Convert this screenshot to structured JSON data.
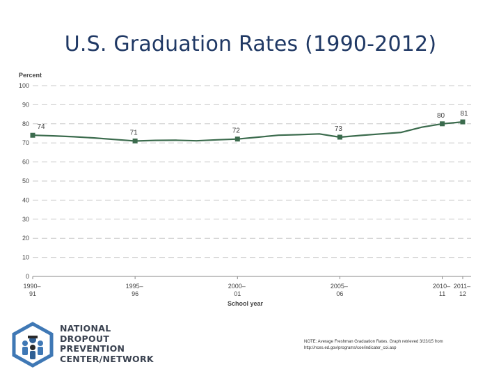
{
  "slide": {
    "title": "U.S. Graduation  Rates (1990-2012)"
  },
  "chart_data": {
    "type": "line",
    "title": "",
    "ylabel": "Percent",
    "xlabel": "School year",
    "ylim": [
      0,
      100
    ],
    "yticks": [
      0,
      10,
      20,
      30,
      40,
      50,
      60,
      70,
      80,
      90,
      100
    ],
    "xticks": [
      {
        "line1": "1990–",
        "line2": "91"
      },
      {
        "line1": "1995–",
        "line2": "96"
      },
      {
        "line1": "2000–",
        "line2": "01"
      },
      {
        "line1": "2005–",
        "line2": "06"
      },
      {
        "line1": "2010–",
        "line2": "11"
      },
      {
        "line1": "2011–",
        "line2": "12"
      }
    ],
    "x": [
      "1990–91",
      "1991–92",
      "1992–93",
      "1993–94",
      "1994–95",
      "1995–96",
      "1996–97",
      "1997–98",
      "1998–99",
      "1999–2000",
      "2000–01",
      "2001–02",
      "2002–03",
      "2003–04",
      "2004–05",
      "2005–06",
      "2006–07",
      "2007–08",
      "2008–09",
      "2009–10",
      "2010–11",
      "2011–12"
    ],
    "values": [
      74,
      73.7,
      73.2,
      72.6,
      71.8,
      71,
      71.3,
      71.4,
      71.1,
      71.6,
      72,
      73,
      74,
      74.3,
      74.7,
      73,
      73.9,
      74.7,
      75.5,
      78.2,
      80,
      81
    ],
    "markers": [
      {
        "index": 0,
        "label": "74"
      },
      {
        "index": 5,
        "label": "71"
      },
      {
        "index": 10,
        "label": "72"
      },
      {
        "index": 15,
        "label": "73"
      },
      {
        "index": 20,
        "label": "80"
      },
      {
        "index": 21,
        "label": "81"
      }
    ],
    "line_color": "#3b6b4d",
    "grid": "dashed horizontal"
  },
  "footer": {
    "logo_lines": [
      "NATIONAL",
      "DROPOUT",
      "PREVENTION",
      "CENTER/NETWORK"
    ],
    "note": "NOTE: Average Freshman Graduation Rates. Graph retrieved 3/23/15 from http://nces.ed.gov/programs/coe/indicator_coi.asp"
  }
}
